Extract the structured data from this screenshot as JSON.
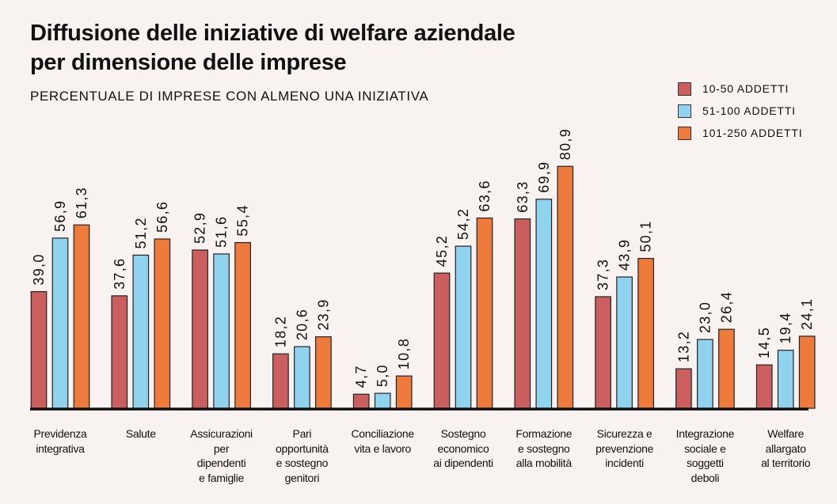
{
  "chart_data": {
    "type": "bar",
    "title_lines": [
      "Diffusione delle iniziative di welfare aziendale",
      "per dimensione delle imprese"
    ],
    "subtitle": "PERCENTUALE DI IMPRESE CON ALMENO UNA INIZIATIVA",
    "categories": [
      [
        "Previdenza",
        "integrativa"
      ],
      [
        "Salute"
      ],
      [
        "Assicurazioni",
        "per",
        "dipendenti",
        "e famiglie"
      ],
      [
        "Pari",
        "opportunità",
        "e sostegno",
        "genitori"
      ],
      [
        "Conciliazione",
        "vita e lavoro"
      ],
      [
        "Sostegno",
        "economico",
        "ai dipendenti"
      ],
      [
        "Formazione",
        "e sostegno",
        "alla mobilità"
      ],
      [
        "Sicurezza e",
        "prevenzione",
        "incidenti"
      ],
      [
        "Integrazione",
        "sociale e",
        "soggetti",
        "deboli"
      ],
      [
        "Welfare",
        "allargato",
        "al territorio"
      ]
    ],
    "series": [
      {
        "name": "10-50 ADDETTI",
        "color": "#cb5f5f",
        "values": [
          39.0,
          37.6,
          52.9,
          18.2,
          4.7,
          45.2,
          63.3,
          37.3,
          13.2,
          14.5
        ],
        "labels": [
          "39,0",
          "37,6",
          "52,9",
          "18,2",
          "4,7",
          "45,2",
          "63,3",
          "37,3",
          "13,2",
          "14,5"
        ]
      },
      {
        "name": "51-100 ADDETTI",
        "color": "#8fd3ee",
        "values": [
          56.9,
          51.2,
          51.6,
          20.6,
          5.0,
          54.2,
          69.9,
          43.9,
          23.0,
          19.4
        ],
        "labels": [
          "56,9",
          "51,2",
          "51,6",
          "20,6",
          "5,0",
          "54,2",
          "69,9",
          "43,9",
          "23,0",
          "19,4"
        ]
      },
      {
        "name": "101-250 ADDETTI",
        "color": "#ee7a3b",
        "values": [
          61.3,
          56.6,
          55.4,
          23.9,
          10.8,
          63.6,
          80.9,
          50.1,
          26.4,
          24.1
        ],
        "labels": [
          "61,3",
          "56,6",
          "55,4",
          "23,9",
          "10,8",
          "63,6",
          "80,9",
          "50,1",
          "26,4",
          "24,1"
        ]
      }
    ],
    "ylim": [
      0,
      100
    ],
    "legend_position": "top-right",
    "grid": false,
    "colors": {
      "background": "#f8f3f1",
      "baseline": "#111111",
      "bar_outline": "#222222"
    }
  }
}
